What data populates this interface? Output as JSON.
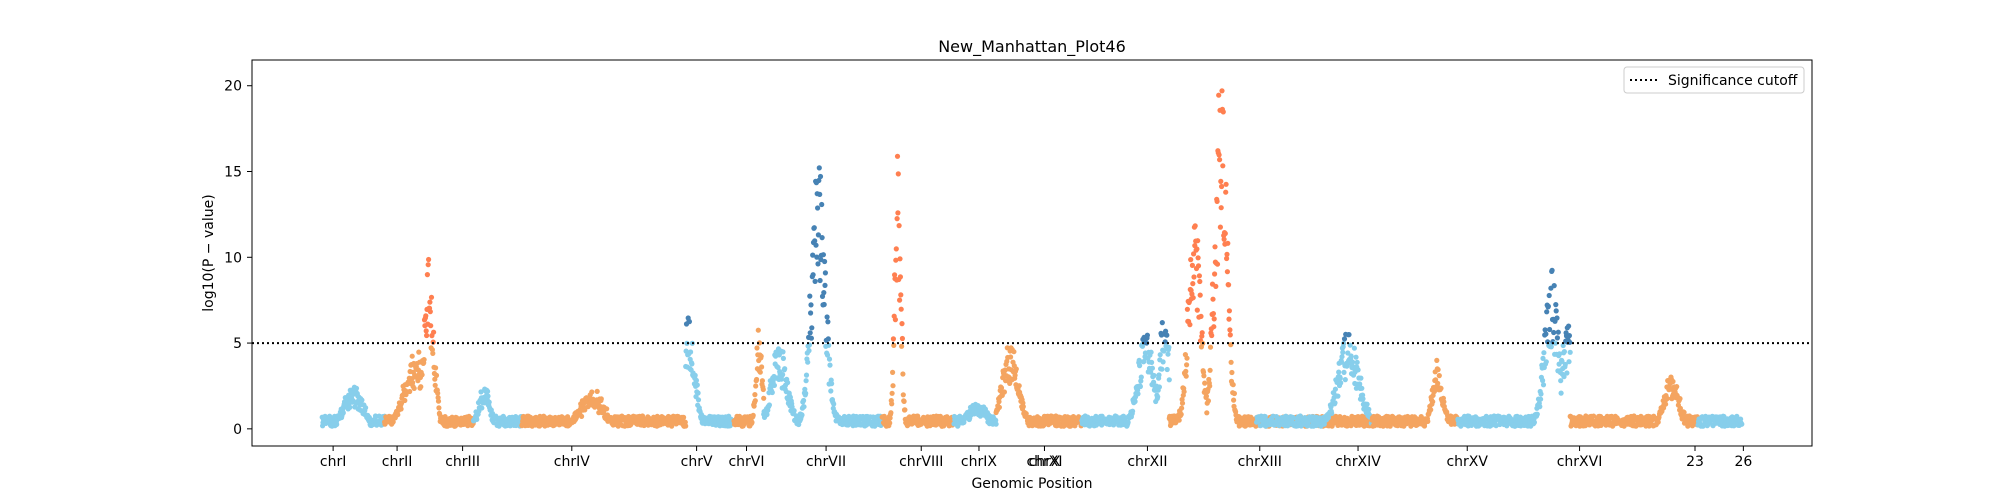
{
  "chart_data": {
    "type": "scatter",
    "title": "New_Manhattan_Plot46",
    "xlabel": "Genomic Position",
    "ylabel": "log10(P − value)",
    "ylim": [
      -1,
      21.5
    ],
    "xlim": [
      0,
      100
    ],
    "yticks": [
      0,
      5,
      10,
      15,
      20
    ],
    "grid": false,
    "legend_position": "top-right",
    "threshold": {
      "value": 5,
      "label": "Significance cutoff",
      "style": "dotted",
      "color": "#000000"
    },
    "colors": {
      "light_blue": "#87CEEB",
      "orange": "#F4A460",
      "coral": "#FF7F50",
      "steel_blue": "#4682B4"
    },
    "chromosomes": [
      {
        "name": "chrI",
        "start": 4.5,
        "end": 8.5,
        "tick": 5.2,
        "base_color": "#87CEEB",
        "peaks": [
          {
            "x": 6.5,
            "width": 1.0,
            "height": 2.2
          }
        ]
      },
      {
        "name": "chrII",
        "start": 8.5,
        "end": 14.2,
        "tick": 9.3,
        "base_color": "#F4A460",
        "peaks": [
          {
            "x": 10.5,
            "width": 1.2,
            "height": 4.2
          },
          {
            "x": 11.3,
            "width": 0.6,
            "height": 9.5
          }
        ],
        "high_color": "#FF7F50"
      },
      {
        "name": "chrIII",
        "start": 14.2,
        "end": 17.3,
        "tick": 13.5,
        "base_color": "#87CEEB",
        "peaks": [
          {
            "x": 14.9,
            "width": 0.6,
            "height": 2.3
          }
        ]
      },
      {
        "name": "chrIV",
        "start": 17.3,
        "end": 27.8,
        "tick": 20.5,
        "base_color": "#F4A460",
        "peaks": [
          {
            "x": 21.8,
            "width": 1.2,
            "height": 2.0
          }
        ]
      },
      {
        "name": "chrV",
        "start": 27.8,
        "end": 30.9,
        "tick": 28.5,
        "base_color": "#87CEEB",
        "peaks": [
          {
            "x": 28.0,
            "width": 0.7,
            "height": 6.0
          }
        ],
        "high_color": "#4682B4"
      },
      {
        "name": "chrVI",
        "start": 30.9,
        "end": 32.8,
        "tick": 31.7,
        "base_color": "#F4A460",
        "peaks": [
          {
            "x": 32.5,
            "width": 0.35,
            "height": 5.6
          }
        ]
      },
      {
        "name": "chrVII",
        "start": 32.8,
        "end": 40.4,
        "tick": 36.8,
        "base_color": "#87CEEB",
        "peaks": [
          {
            "x": 33.8,
            "width": 0.9,
            "height": 4.5
          },
          {
            "x": 36.3,
            "width": 0.8,
            "height": 14.8
          }
        ],
        "high_color": "#4682B4"
      },
      {
        "name": "chrVIII",
        "start": 40.4,
        "end": 45.0,
        "tick": 42.9,
        "base_color": "#F4A460",
        "peaks": [
          {
            "x": 41.4,
            "width": 0.35,
            "height": 15.0
          }
        ],
        "high_color": "#FF7F50"
      },
      {
        "name": "chrIX",
        "start": 45.0,
        "end": 47.7,
        "tick": 46.6,
        "base_color": "#87CEEB",
        "peaks": [
          {
            "x": 46.5,
            "width": 1.0,
            "height": 1.2
          }
        ]
      },
      {
        "name": "chrX",
        "start": 47.7,
        "end": 53.2,
        "tick": 50.8,
        "base_color": "#F4A460",
        "peaks": [
          {
            "x": 48.6,
            "width": 0.9,
            "height": 4.6
          }
        ]
      },
      {
        "name": "chrXI",
        "start": 53.2,
        "end": 58.8,
        "tick": 50.8,
        "base_color": "#87CEEB",
        "peaks": [
          {
            "x": 57.3,
            "width": 0.9,
            "height": 5.2
          },
          {
            "x": 58.5,
            "width": 0.6,
            "height": 6.5
          }
        ],
        "high_color": "#4682B4"
      },
      {
        "name": "chrXII",
        "start": 58.8,
        "end": 64.4,
        "tick": 57.4,
        "base_color": "#F4A460",
        "peaks": [
          {
            "x": 60.4,
            "width": 0.7,
            "height": 12.0
          },
          {
            "x": 62.1,
            "width": 0.7,
            "height": 19.5
          }
        ],
        "high_color": "#FF7F50"
      },
      {
        "name": "chrXIII",
        "start": 64.4,
        "end": 71.8,
        "tick": 64.6,
        "base_color": "#F4A460",
        "peaks": [
          {
            "x": 62.8,
            "width": 0.3,
            "height": 5.0
          }
        ]
      },
      {
        "name": "chrXIV",
        "start": 64.4,
        "end": 71.8,
        "tick": 70.9,
        "base_color": "#87CEEB",
        "peaks": [
          {
            "x": 70.3,
            "width": 1.2,
            "height": 5.2
          }
        ],
        "high_color": "#4682B4"
      },
      {
        "name": "chrXV",
        "start": 71.8,
        "end": 77.3,
        "tick": 77.9,
        "base_color": "#F4A460",
        "peaks": [
          {
            "x": 76.0,
            "width": 0.6,
            "height": 3.6
          }
        ]
      },
      {
        "name": "chrXVI",
        "start": 77.3,
        "end": 84.5,
        "tick": 85.1,
        "base_color": "#87CEEB",
        "peaks": [
          {
            "x": 83.3,
            "width": 0.8,
            "height": 8.5
          },
          {
            "x": 84.3,
            "width": 0.7,
            "height": 5.8
          }
        ],
        "high_color": "#4682B4"
      },
      {
        "name": "23",
        "start": 84.5,
        "end": 92.7,
        "tick": 92.5,
        "base_color": "#F4A460",
        "peaks": [
          {
            "x": 91.0,
            "width": 0.8,
            "height": 3.0
          }
        ]
      },
      {
        "name": "26",
        "start": 92.7,
        "end": 95.5,
        "tick": 95.6,
        "base_color": "#87CEEB",
        "peaks": []
      }
    ]
  }
}
